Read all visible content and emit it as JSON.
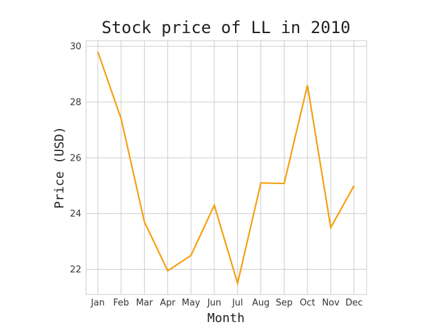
{
  "chart_data": {
    "type": "line",
    "title": "Stock price of LL in 2010",
    "xlabel": "Month",
    "ylabel": "Price (USD)",
    "categories": [
      "Jan",
      "Feb",
      "Mar",
      "Apr",
      "May",
      "Jun",
      "Jul",
      "Aug",
      "Sep",
      "Oct",
      "Nov",
      "Dec"
    ],
    "series": [
      {
        "values": [
          29.8,
          27.4,
          23.7,
          21.95,
          22.5,
          24.3,
          21.5,
          25.1,
          25.08,
          28.6,
          23.5,
          25.0
        ],
        "color": "#f5a00f"
      }
    ],
    "yticks": [
      22,
      24,
      26,
      28,
      30
    ],
    "ylim": [
      21.1,
      30.2
    ],
    "grid": true,
    "legend": "none"
  }
}
